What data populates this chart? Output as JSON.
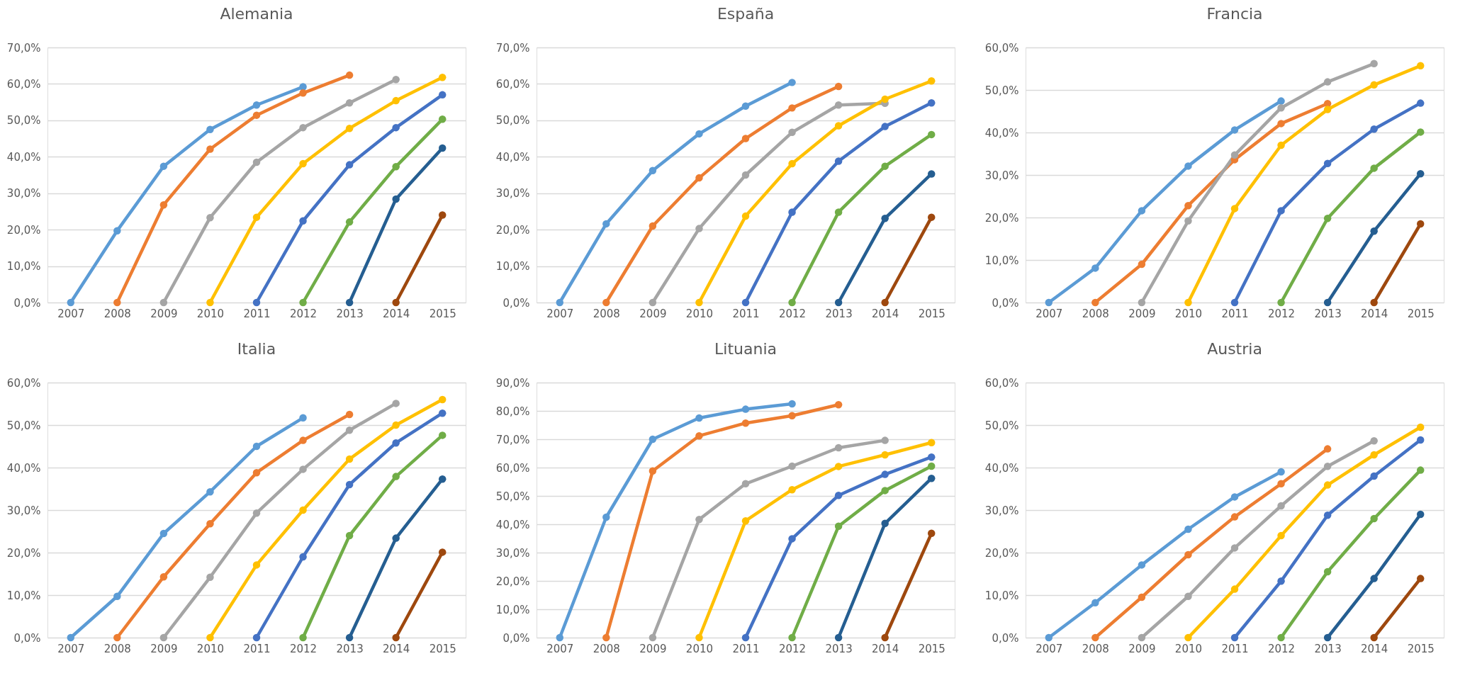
{
  "chart_data": [
    {
      "type": "line",
      "title": "Alemania",
      "categories": [
        "2007",
        "2008",
        "2009",
        "2010",
        "2011",
        "2012",
        "2013",
        "2014",
        "2015"
      ],
      "ylim": [
        0,
        70
      ],
      "yticks": [
        {
          "value": 0,
          "label": "0,0%"
        },
        {
          "value": 10,
          "label": "10,0%"
        },
        {
          "value": 20,
          "label": "20,0%"
        },
        {
          "value": 30,
          "label": "30,0%"
        },
        {
          "value": 40,
          "label": "40,0%"
        },
        {
          "value": 50,
          "label": "50,0%"
        },
        {
          "value": 60,
          "label": "60,0%"
        },
        {
          "value": 70,
          "label": "70,0%"
        }
      ],
      "grid": "y",
      "marker": "circle",
      "line_style": "solid",
      "series": [
        {
          "color": "#5b9bd5",
          "values": [
            0,
            19.7,
            37.4,
            47.5,
            54.2,
            59.2,
            null,
            null,
            null
          ]
        },
        {
          "color": "#ed7d31",
          "values": [
            null,
            0,
            26.8,
            42.1,
            51.4,
            57.5,
            62.4,
            null,
            null
          ]
        },
        {
          "color": "#a5a5a5",
          "values": [
            null,
            null,
            0,
            23.3,
            38.5,
            48.0,
            54.8,
            61.2,
            null
          ]
        },
        {
          "color": "#ffc000",
          "values": [
            null,
            null,
            null,
            0,
            23.4,
            38.1,
            47.8,
            55.4,
            61.8
          ]
        },
        {
          "color": "#4472c4",
          "values": [
            null,
            null,
            null,
            null,
            0,
            22.4,
            37.8,
            48.0,
            57.0
          ]
        },
        {
          "color": "#70ad47",
          "values": [
            null,
            null,
            null,
            null,
            null,
            0,
            22.1,
            37.3,
            50.3
          ]
        },
        {
          "color": "#255e91",
          "values": [
            null,
            null,
            null,
            null,
            null,
            null,
            0,
            28.4,
            42.4
          ]
        },
        {
          "color": "#9e480e",
          "values": [
            null,
            null,
            null,
            null,
            null,
            null,
            null,
            0,
            24.0
          ]
        }
      ]
    },
    {
      "type": "line",
      "title": "España",
      "categories": [
        "2007",
        "2008",
        "2009",
        "2010",
        "2011",
        "2012",
        "2013",
        "2014",
        "2015"
      ],
      "ylim": [
        0,
        70
      ],
      "yticks": [
        {
          "value": 0,
          "label": "0,0%"
        },
        {
          "value": 10,
          "label": "10,0%"
        },
        {
          "value": 20,
          "label": "20,0%"
        },
        {
          "value": 30,
          "label": "30,0%"
        },
        {
          "value": 40,
          "label": "40,0%"
        },
        {
          "value": 50,
          "label": "50,0%"
        },
        {
          "value": 60,
          "label": "60,0%"
        },
        {
          "value": 70,
          "label": "70,0%"
        }
      ],
      "grid": "y",
      "marker": "circle",
      "line_style": "solid",
      "series": [
        {
          "color": "#5b9bd5",
          "values": [
            0,
            21.6,
            36.2,
            46.3,
            53.9,
            60.4,
            null,
            null,
            null
          ]
        },
        {
          "color": "#ed7d31",
          "values": [
            null,
            0,
            21.0,
            34.2,
            45.0,
            53.4,
            59.3,
            null,
            null
          ]
        },
        {
          "color": "#a5a5a5",
          "values": [
            null,
            null,
            0,
            20.3,
            35.0,
            46.7,
            54.2,
            54.7,
            null
          ]
        },
        {
          "color": "#ffc000",
          "values": [
            null,
            null,
            null,
            0,
            23.7,
            38.1,
            48.5,
            55.8,
            60.8
          ]
        },
        {
          "color": "#4472c4",
          "values": [
            null,
            null,
            null,
            null,
            0,
            24.8,
            38.8,
            48.3,
            54.8
          ]
        },
        {
          "color": "#70ad47",
          "values": [
            null,
            null,
            null,
            null,
            null,
            0,
            24.8,
            37.4,
            46.1
          ]
        },
        {
          "color": "#255e91",
          "values": [
            null,
            null,
            null,
            null,
            null,
            null,
            0,
            23.1,
            35.3
          ]
        },
        {
          "color": "#9e480e",
          "values": [
            null,
            null,
            null,
            null,
            null,
            null,
            null,
            0,
            23.4
          ]
        }
      ]
    },
    {
      "type": "line",
      "title": "Francia",
      "categories": [
        "2007",
        "2008",
        "2009",
        "2010",
        "2011",
        "2012",
        "2013",
        "2014",
        "2015"
      ],
      "ylim": [
        0,
        60
      ],
      "yticks": [
        {
          "value": 0,
          "label": "0,0%"
        },
        {
          "value": 10,
          "label": "10,0%"
        },
        {
          "value": 20,
          "label": "20,0%"
        },
        {
          "value": 30,
          "label": "30,0%"
        },
        {
          "value": 40,
          "label": "40,0%"
        },
        {
          "value": 50,
          "label": "50,0%"
        },
        {
          "value": 60,
          "label": "60,0%"
        }
      ],
      "grid": "y",
      "marker": "circle",
      "line_style": "solid",
      "series": [
        {
          "color": "#5b9bd5",
          "values": [
            0,
            8.1,
            21.6,
            32.1,
            40.6,
            47.4,
            null,
            null,
            null
          ]
        },
        {
          "color": "#ed7d31",
          "values": [
            null,
            0,
            9.0,
            22.8,
            33.6,
            42.1,
            46.8,
            null,
            null
          ]
        },
        {
          "color": "#a5a5a5",
          "values": [
            null,
            null,
            0,
            19.2,
            34.7,
            45.8,
            51.9,
            56.2,
            null
          ]
        },
        {
          "color": "#ffc000",
          "values": [
            null,
            null,
            null,
            0,
            22.1,
            37.0,
            45.4,
            51.2,
            55.7
          ]
        },
        {
          "color": "#4472c4",
          "values": [
            null,
            null,
            null,
            null,
            0,
            21.6,
            32.7,
            40.8,
            46.9
          ]
        },
        {
          "color": "#70ad47",
          "values": [
            null,
            null,
            null,
            null,
            null,
            0,
            19.8,
            31.6,
            40.1
          ]
        },
        {
          "color": "#255e91",
          "values": [
            null,
            null,
            null,
            null,
            null,
            null,
            0,
            16.8,
            30.3
          ]
        },
        {
          "color": "#9e480e",
          "values": [
            null,
            null,
            null,
            null,
            null,
            null,
            null,
            0,
            18.5
          ]
        }
      ]
    },
    {
      "type": "line",
      "title": "Italia",
      "categories": [
        "2007",
        "2008",
        "2009",
        "2010",
        "2011",
        "2012",
        "2013",
        "2014",
        "2015"
      ],
      "ylim": [
        0,
        60
      ],
      "yticks": [
        {
          "value": 0,
          "label": "0,0%"
        },
        {
          "value": 10,
          "label": "10,0%"
        },
        {
          "value": 20,
          "label": "20,0%"
        },
        {
          "value": 30,
          "label": "30,0%"
        },
        {
          "value": 40,
          "label": "40,0%"
        },
        {
          "value": 50,
          "label": "50,0%"
        },
        {
          "value": 60,
          "label": "60,0%"
        }
      ],
      "grid": "y",
      "marker": "circle",
      "line_style": "solid",
      "series": [
        {
          "color": "#5b9bd5",
          "values": [
            0,
            9.7,
            24.5,
            34.3,
            45.0,
            51.7,
            null,
            null,
            null
          ]
        },
        {
          "color": "#ed7d31",
          "values": [
            null,
            0,
            14.3,
            26.8,
            38.8,
            46.4,
            52.5,
            null,
            null
          ]
        },
        {
          "color": "#a5a5a5",
          "values": [
            null,
            null,
            0,
            14.2,
            29.3,
            39.6,
            48.8,
            55.1,
            null
          ]
        },
        {
          "color": "#ffc000",
          "values": [
            null,
            null,
            null,
            0,
            17.1,
            30.0,
            42.0,
            50.0,
            56.0
          ]
        },
        {
          "color": "#4472c4",
          "values": [
            null,
            null,
            null,
            null,
            0,
            19.0,
            36.0,
            45.8,
            52.8
          ]
        },
        {
          "color": "#70ad47",
          "values": [
            null,
            null,
            null,
            null,
            null,
            0,
            24.0,
            37.9,
            47.6
          ]
        },
        {
          "color": "#255e91",
          "values": [
            null,
            null,
            null,
            null,
            null,
            null,
            0,
            23.4,
            37.3
          ]
        },
        {
          "color": "#9e480e",
          "values": [
            null,
            null,
            null,
            null,
            null,
            null,
            null,
            0,
            20.1
          ]
        }
      ]
    },
    {
      "type": "line",
      "title": "Lituania",
      "categories": [
        "2007",
        "2008",
        "2009",
        "2010",
        "2011",
        "2012",
        "2013",
        "2014",
        "2015"
      ],
      "ylim": [
        0,
        90
      ],
      "yticks": [
        {
          "value": 0,
          "label": "0,0%"
        },
        {
          "value": 10,
          "label": "10,0%"
        },
        {
          "value": 20,
          "label": "20,0%"
        },
        {
          "value": 30,
          "label": "30,0%"
        },
        {
          "value": 40,
          "label": "40,0%"
        },
        {
          "value": 50,
          "label": "50,0%"
        },
        {
          "value": 60,
          "label": "60,0%"
        },
        {
          "value": 70,
          "label": "70,0%"
        },
        {
          "value": 80,
          "label": "80,0%"
        },
        {
          "value": 90,
          "label": "90,0%"
        }
      ],
      "grid": "y",
      "marker": "circle",
      "line_style": "solid",
      "series": [
        {
          "color": "#5b9bd5",
          "values": [
            0,
            42.5,
            70.0,
            77.5,
            80.6,
            82.5,
            null,
            null,
            null
          ]
        },
        {
          "color": "#ed7d31",
          "values": [
            null,
            0,
            58.8,
            71.2,
            75.7,
            78.3,
            82.2,
            null,
            null
          ]
        },
        {
          "color": "#a5a5a5",
          "values": [
            null,
            null,
            0,
            41.7,
            54.3,
            60.5,
            67.0,
            69.6,
            null
          ]
        },
        {
          "color": "#ffc000",
          "values": [
            null,
            null,
            null,
            0,
            41.2,
            52.2,
            60.4,
            64.5,
            68.8
          ]
        },
        {
          "color": "#4472c4",
          "values": [
            null,
            null,
            null,
            null,
            0,
            34.9,
            50.2,
            57.6,
            63.7
          ]
        },
        {
          "color": "#70ad47",
          "values": [
            null,
            null,
            null,
            null,
            null,
            0,
            39.3,
            51.9,
            60.5
          ]
        },
        {
          "color": "#255e91",
          "values": [
            null,
            null,
            null,
            null,
            null,
            null,
            0,
            40.3,
            56.2
          ]
        },
        {
          "color": "#9e480e",
          "values": [
            null,
            null,
            null,
            null,
            null,
            null,
            null,
            0,
            36.8
          ]
        }
      ]
    },
    {
      "type": "line",
      "title": "Austria",
      "categories": [
        "2007",
        "2008",
        "2009",
        "2010",
        "2011",
        "2012",
        "2013",
        "2014",
        "2015"
      ],
      "ylim": [
        0,
        60
      ],
      "yticks": [
        {
          "value": 0,
          "label": "0,0%"
        },
        {
          "value": 10,
          "label": "10,0%"
        },
        {
          "value": 20,
          "label": "20,0%"
        },
        {
          "value": 30,
          "label": "30,0%"
        },
        {
          "value": 40,
          "label": "40,0%"
        },
        {
          "value": 50,
          "label": "50,0%"
        },
        {
          "value": 60,
          "label": "60,0%"
        }
      ],
      "grid": "y",
      "marker": "circle",
      "line_style": "solid",
      "series": [
        {
          "color": "#5b9bd5",
          "values": [
            0,
            8.2,
            17.1,
            25.5,
            33.1,
            39.0,
            null,
            null,
            null
          ]
        },
        {
          "color": "#ed7d31",
          "values": [
            null,
            0,
            9.5,
            19.5,
            28.4,
            36.2,
            44.4,
            null,
            null
          ]
        },
        {
          "color": "#a5a5a5",
          "values": [
            null,
            null,
            0,
            9.7,
            21.1,
            31.0,
            40.3,
            46.3,
            null
          ]
        },
        {
          "color": "#ffc000",
          "values": [
            null,
            null,
            null,
            0,
            11.4,
            24.0,
            35.9,
            43.0,
            49.5
          ]
        },
        {
          "color": "#4472c4",
          "values": [
            null,
            null,
            null,
            null,
            0,
            13.3,
            28.8,
            38.0,
            46.5
          ]
        },
        {
          "color": "#70ad47",
          "values": [
            null,
            null,
            null,
            null,
            null,
            0,
            15.5,
            28.0,
            39.4
          ]
        },
        {
          "color": "#255e91",
          "values": [
            null,
            null,
            null,
            null,
            null,
            null,
            0,
            13.9,
            29.0
          ]
        },
        {
          "color": "#9e480e",
          "values": [
            null,
            null,
            null,
            null,
            null,
            null,
            null,
            0,
            13.9
          ]
        }
      ]
    }
  ]
}
